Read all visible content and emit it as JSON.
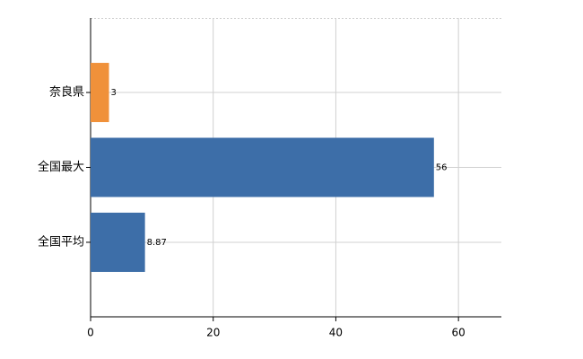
{
  "chart_data": {
    "type": "hbar",
    "categories": [
      "奈良県",
      "全国最大",
      "全国平均"
    ],
    "values": [
      3,
      56,
      8.87
    ],
    "colors": [
      "#f0913a",
      "#3d6ea8",
      "#3d6ea8"
    ],
    "xlim": [
      0,
      67
    ],
    "xticks": [
      0,
      20,
      40,
      60
    ],
    "grid": true
  }
}
